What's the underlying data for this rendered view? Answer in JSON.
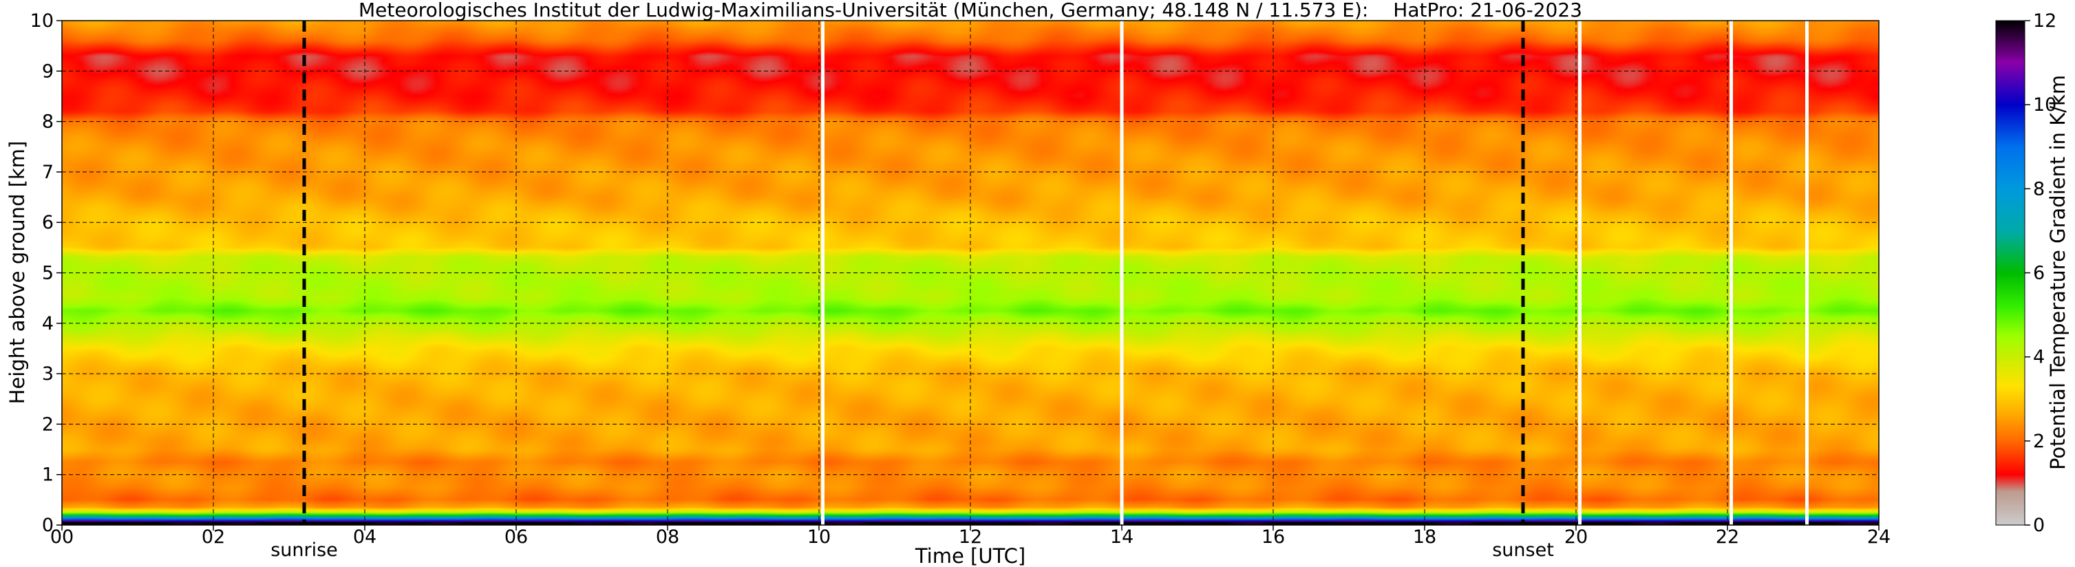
{
  "chart_data": {
    "type": "heatmap",
    "title": "Meteorologisches Institut der Ludwig-Maximilians-Universität (München, Germany; 48.148 N / 11.573 E):",
    "subtitle": "HatPro: 21-06-2023",
    "xlabel": "Time [UTC]",
    "ylabel": "Height above ground [km]",
    "colorbar_label": "Potential Temperature Gradient in K/km",
    "xlim": [
      0,
      24
    ],
    "ylim": [
      0,
      10
    ],
    "clim": [
      0,
      12
    ],
    "x_ticks": [
      0,
      2,
      4,
      6,
      8,
      10,
      12,
      14,
      16,
      18,
      20,
      22,
      24
    ],
    "x_tick_labels": [
      "00",
      "02",
      "04",
      "06",
      "08",
      "10",
      "12",
      "14",
      "16",
      "18",
      "20",
      "22",
      "24"
    ],
    "y_ticks": [
      0,
      1,
      2,
      3,
      4,
      5,
      6,
      7,
      8,
      9,
      10
    ],
    "y_tick_labels": [
      "0",
      "1",
      "2",
      "3",
      "4",
      "5",
      "6",
      "7",
      "8",
      "9",
      "10"
    ],
    "colorbar_ticks": [
      0,
      2,
      4,
      6,
      8,
      10,
      12
    ],
    "colorbar_tick_labels": [
      "0",
      "2",
      "4",
      "6",
      "8",
      "10",
      "12"
    ],
    "grid": true,
    "markers": [
      {
        "time": 3.2,
        "label": "sunrise",
        "style": "dashed"
      },
      {
        "time": 19.3,
        "label": "sunset",
        "style": "dashed"
      }
    ],
    "data_gaps": [
      10.05,
      14.0,
      20.05,
      22.05,
      23.05
    ],
    "height_levels_km": [
      0.05,
      0.15,
      0.25,
      0.35,
      0.5,
      0.75,
      1.0,
      1.25,
      1.5,
      2.0,
      2.5,
      3.0,
      3.5,
      4.0,
      4.25,
      4.5,
      5.0,
      5.3,
      5.5,
      6.0,
      6.5,
      7.0,
      7.5,
      8.0,
      8.2,
      8.5,
      9.0,
      9.3,
      9.6,
      10.0
    ],
    "mean_gradient_profile_K_per_km": [
      12.0,
      7.5,
      4.0,
      2.5,
      2.0,
      2.3,
      2.4,
      2.2,
      2.6,
      2.6,
      2.7,
      2.8,
      3.3,
      4.3,
      4.8,
      4.3,
      4.2,
      4.0,
      3.0,
      2.9,
      2.6,
      2.5,
      2.4,
      2.2,
      1.6,
      1.4,
      1.2,
      1.2,
      2.0,
      2.5
    ],
    "colormap_stops": [
      {
        "value": 0,
        "color": "#cccccc"
      },
      {
        "value": 0.8,
        "color": "#bd9a8e"
      },
      {
        "value": 1.2,
        "color": "#ff0000"
      },
      {
        "value": 2.0,
        "color": "#ff6a00"
      },
      {
        "value": 2.7,
        "color": "#ffb000"
      },
      {
        "value": 3.3,
        "color": "#ffe200"
      },
      {
        "value": 4.0,
        "color": "#c8ee00"
      },
      {
        "value": 4.5,
        "color": "#9cff00"
      },
      {
        "value": 5.2,
        "color": "#33ee00"
      },
      {
        "value": 6.0,
        "color": "#00bb00"
      },
      {
        "value": 7.0,
        "color": "#00aaaa"
      },
      {
        "value": 8.0,
        "color": "#0099dd"
      },
      {
        "value": 9.0,
        "color": "#0070ee"
      },
      {
        "value": 10.0,
        "color": "#0000c8"
      },
      {
        "value": 11.0,
        "color": "#8a00aa"
      },
      {
        "value": 12.0,
        "color": "#000000"
      }
    ]
  }
}
